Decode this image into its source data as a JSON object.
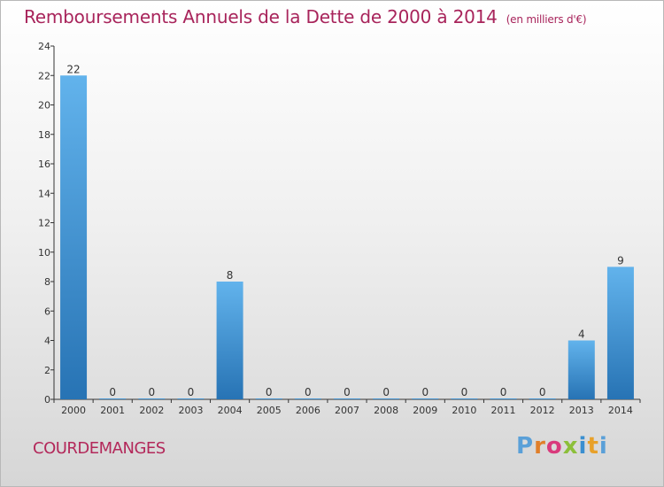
{
  "title": {
    "main": "Remboursements Annuels de la Dette de 2000 à 2014",
    "unit": "(en milliers d'€)"
  },
  "commune": "COURDEMANGES",
  "brand": [
    "P",
    "r",
    "o",
    "x",
    "i",
    "t",
    "i"
  ],
  "chart_data": {
    "type": "bar",
    "title": "Remboursements Annuels de la Dette de 2000 à 2014",
    "xlabel": "",
    "ylabel": "",
    "categories": [
      "2000",
      "2001",
      "2002",
      "2003",
      "2004",
      "2005",
      "2006",
      "2007",
      "2008",
      "2009",
      "2010",
      "2011",
      "2012",
      "2013",
      "2014"
    ],
    "values": [
      22,
      0,
      0,
      0,
      8,
      0,
      0,
      0,
      0,
      0,
      0,
      0,
      0,
      4,
      9
    ],
    "ylim": [
      0,
      24
    ],
    "yticks": [
      0,
      2,
      4,
      6,
      8,
      10,
      12,
      14,
      16,
      18,
      20,
      22,
      24
    ],
    "grid": false,
    "colors": {
      "bar_top": "#62b3ec",
      "bar_bottom": "#2773b4",
      "axis": "#333333",
      "text": "#333333"
    }
  }
}
